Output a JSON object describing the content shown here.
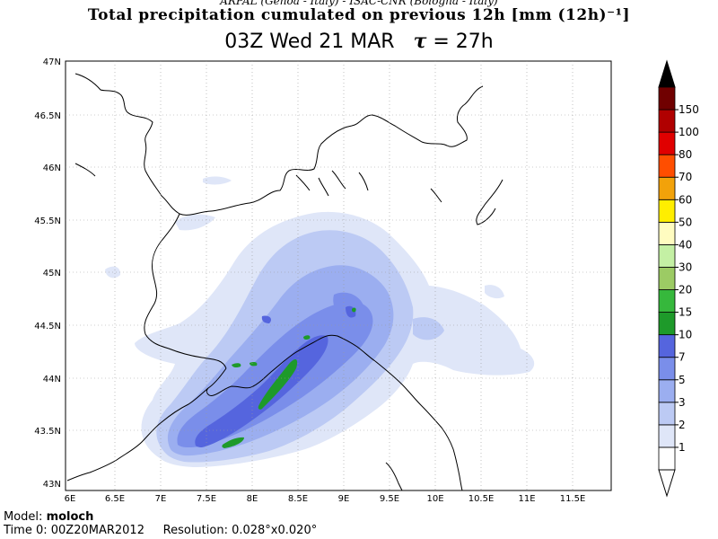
{
  "header": {
    "subtitle": "ARPAL (Genoa - Italy)  -  ISAC-CNR (Bologna - Italy)",
    "title": "Total precipitation cumulated on previous 12h [mm (12h)⁻¹]",
    "time_prefix": "03Z Wed 21 MAR",
    "tau_symbol": "τ",
    "tau_value": "= 27h"
  },
  "map": {
    "lat_labels": [
      "47N",
      "46.5N",
      "46N",
      "45.5N",
      "45N",
      "44.5N",
      "44N",
      "43.5N",
      "43N"
    ],
    "lon_labels": [
      "6E",
      "6.5E",
      "7E",
      "7.5E",
      "8E",
      "8.5E",
      "9E",
      "9.5E",
      "10E",
      "10.5E",
      "11E",
      "11.5E"
    ],
    "colors": {
      "sea_land": "#ffffff",
      "lvl1": "#dfe6f8",
      "lvl2": "#bccaf4",
      "lvl3": "#9baef0",
      "lvl5": "#7a8eea",
      "lvl7": "#5565de",
      "lvl10": "#1e9a2a"
    }
  },
  "colorbar": {
    "labels": [
      "1",
      "2",
      "3",
      "5",
      "7",
      "10",
      "15",
      "20",
      "30",
      "40",
      "50",
      "60",
      "70",
      "80",
      "100",
      "150"
    ],
    "colors": [
      "#ffffff",
      "#dfe6f8",
      "#bccaf4",
      "#9baef0",
      "#7a8eea",
      "#5565de",
      "#1e9a2a",
      "#36b83c",
      "#9ccb64",
      "#c4f0a4",
      "#fffcc0",
      "#ffee00",
      "#f2a20a",
      "#ff4e00",
      "#e00000",
      "#b00000",
      "#700000"
    ]
  },
  "footer": {
    "model_label": "Model:",
    "model_value": "moloch",
    "time0_label": "Time 0:",
    "time0_value": "00Z20MAR2012",
    "resolution_label": "Resolution:",
    "resolution_value": "0.028°x0.020°"
  }
}
